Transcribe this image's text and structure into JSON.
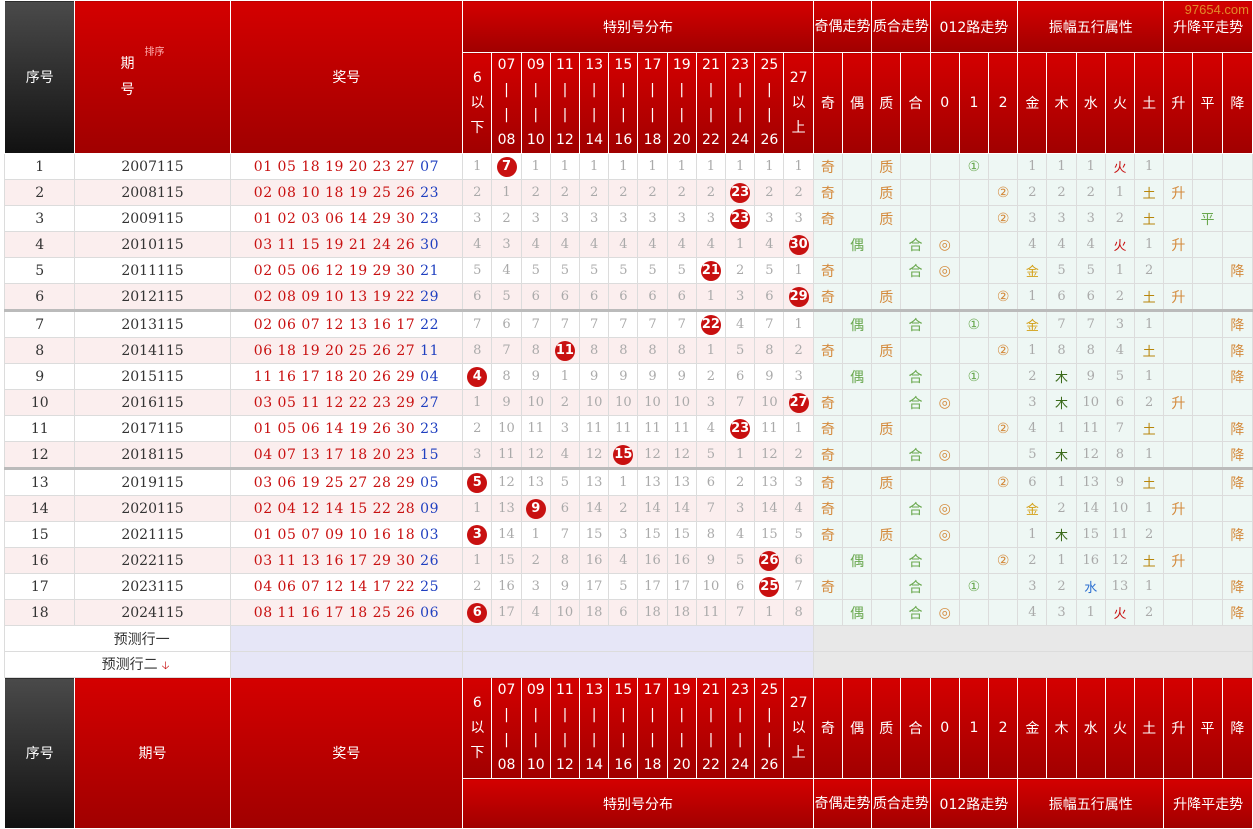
{
  "watermark": "97654.com",
  "headers": {
    "seq": "序号",
    "period_top": "期号",
    "period": "期号",
    "sort": "排序",
    "prize": "奖号",
    "special_dist": "特别号分布",
    "odd_even": "奇偶走势",
    "prime_comp": "质合走势",
    "road012": "012路走势",
    "amp_wuxing": "振幅五行属性",
    "trend": "升降平走势",
    "num_cols": [
      "6|以|下",
      "07|||08",
      "09|||10",
      "11|||12",
      "13|||14",
      "15|||16",
      "17|||18",
      "19|||20",
      "21|||22",
      "23|||24",
      "25|||26",
      "27|以|上"
    ],
    "oe_cols": [
      "奇",
      "偶"
    ],
    "pc_cols": [
      "质",
      "合"
    ],
    "r_cols": [
      "0",
      "1",
      "2"
    ],
    "wx_cols": [
      "金",
      "木",
      "水",
      "火",
      "土"
    ],
    "tr_cols": [
      "升",
      "平",
      "降"
    ]
  },
  "prediction_rows": [
    "预测行一",
    "预测行二"
  ],
  "rows": [
    {
      "seq": "1",
      "period": "2007115",
      "prize": "01 05 18 19 20 23 27",
      "special": "07",
      "hit": 1,
      "miss": [
        "1",
        "7",
        "1",
        "1",
        "1",
        "1",
        "1",
        "1",
        "1",
        "1",
        "1",
        "1"
      ],
      "oe": [
        "奇",
        ""
      ],
      "pc": [
        "质",
        ""
      ],
      "r": [
        "",
        "①",
        ""
      ],
      "wx": [
        "1",
        "1",
        "1",
        "火",
        "1"
      ],
      "tr": [
        "",
        "",
        ""
      ]
    },
    {
      "seq": "2",
      "period": "2008115",
      "prize": "02 08 10 18 19 25 26",
      "special": "23",
      "hit": 9,
      "miss": [
        "2",
        "1",
        "2",
        "2",
        "2",
        "2",
        "2",
        "2",
        "2",
        "23",
        "2",
        "2"
      ],
      "oe": [
        "奇",
        ""
      ],
      "pc": [
        "质",
        ""
      ],
      "r": [
        "",
        "",
        "②"
      ],
      "wx": [
        "2",
        "2",
        "2",
        "1",
        "土"
      ],
      "tr": [
        "升",
        "",
        ""
      ]
    },
    {
      "seq": "3",
      "period": "2009115",
      "prize": "01 02 03 06 14 29 30",
      "special": "23",
      "hit": 9,
      "miss": [
        "3",
        "2",
        "3",
        "3",
        "3",
        "3",
        "3",
        "3",
        "3",
        "23",
        "3",
        "3"
      ],
      "oe": [
        "奇",
        ""
      ],
      "pc": [
        "质",
        ""
      ],
      "r": [
        "",
        "",
        "②"
      ],
      "wx": [
        "3",
        "3",
        "3",
        "2",
        "土"
      ],
      "tr": [
        "",
        "平",
        ""
      ]
    },
    {
      "seq": "4",
      "period": "2010115",
      "prize": "03 11 15 19 21 24 26",
      "special": "30",
      "hit": 11,
      "miss": [
        "4",
        "3",
        "4",
        "4",
        "4",
        "4",
        "4",
        "4",
        "4",
        "1",
        "4",
        "30"
      ],
      "oe": [
        "",
        "偶"
      ],
      "pc": [
        "",
        "合"
      ],
      "r": [
        "◎",
        "",
        ""
      ],
      "wx": [
        "4",
        "4",
        "4",
        "火",
        "1"
      ],
      "tr": [
        "升",
        "",
        ""
      ]
    },
    {
      "seq": "5",
      "period": "2011115",
      "prize": "02 05 06 12 19 29 30",
      "special": "21",
      "hit": 8,
      "miss": [
        "5",
        "4",
        "5",
        "5",
        "5",
        "5",
        "5",
        "5",
        "21",
        "2",
        "5",
        "1"
      ],
      "oe": [
        "奇",
        ""
      ],
      "pc": [
        "",
        "合"
      ],
      "r": [
        "◎",
        "",
        ""
      ],
      "wx": [
        "金",
        "5",
        "5",
        "1",
        "2"
      ],
      "tr": [
        "",
        "",
        "降"
      ]
    },
    {
      "seq": "6",
      "period": "2012115",
      "prize": "02 08 09 10 13 19 22",
      "special": "29",
      "hit": 11,
      "miss": [
        "6",
        "5",
        "6",
        "6",
        "6",
        "6",
        "6",
        "6",
        "1",
        "3",
        "6",
        "29"
      ],
      "oe": [
        "奇",
        ""
      ],
      "pc": [
        "质",
        ""
      ],
      "r": [
        "",
        "",
        "②"
      ],
      "wx": [
        "1",
        "6",
        "6",
        "2",
        "土"
      ],
      "tr": [
        "升",
        "",
        ""
      ]
    },
    {
      "seq": "7",
      "period": "2013115",
      "prize": "02 06 07 12 13 16 17",
      "special": "22",
      "hit": 8,
      "miss": [
        "7",
        "6",
        "7",
        "7",
        "7",
        "7",
        "7",
        "7",
        "22",
        "4",
        "7",
        "1"
      ],
      "oe": [
        "",
        "偶"
      ],
      "pc": [
        "",
        "合"
      ],
      "r": [
        "",
        "①",
        ""
      ],
      "wx": [
        "金",
        "7",
        "7",
        "3",
        "1"
      ],
      "tr": [
        "",
        "",
        "降"
      ]
    },
    {
      "seq": "8",
      "period": "2014115",
      "prize": "06 18 19 20 25 26 27",
      "special": "11",
      "hit": 3,
      "miss": [
        "8",
        "7",
        "8",
        "11",
        "8",
        "8",
        "8",
        "8",
        "1",
        "5",
        "8",
        "2"
      ],
      "oe": [
        "奇",
        ""
      ],
      "pc": [
        "质",
        ""
      ],
      "r": [
        "",
        "",
        "②"
      ],
      "wx": [
        "1",
        "8",
        "8",
        "4",
        "土"
      ],
      "tr": [
        "",
        "",
        "降"
      ]
    },
    {
      "seq": "9",
      "period": "2015115",
      "prize": "11 16 17 18 20 26 29",
      "special": "04",
      "hit": 0,
      "miss": [
        "4",
        "8",
        "9",
        "1",
        "9",
        "9",
        "9",
        "9",
        "2",
        "6",
        "9",
        "3"
      ],
      "oe": [
        "",
        "偶"
      ],
      "pc": [
        "",
        "合"
      ],
      "r": [
        "",
        "①",
        ""
      ],
      "wx": [
        "2",
        "木",
        "9",
        "5",
        "1"
      ],
      "tr": [
        "",
        "",
        "降"
      ]
    },
    {
      "seq": "10",
      "period": "2016115",
      "prize": "03 05 11 12 22 23 29",
      "special": "27",
      "hit": 11,
      "miss": [
        "1",
        "9",
        "10",
        "2",
        "10",
        "10",
        "10",
        "10",
        "3",
        "7",
        "10",
        "27"
      ],
      "oe": [
        "奇",
        ""
      ],
      "pc": [
        "",
        "合"
      ],
      "r": [
        "◎",
        "",
        ""
      ],
      "wx": [
        "3",
        "木",
        "10",
        "6",
        "2"
      ],
      "tr": [
        "升",
        "",
        ""
      ]
    },
    {
      "seq": "11",
      "period": "2017115",
      "prize": "01 05 06 14 19 26 30",
      "special": "23",
      "hit": 9,
      "miss": [
        "2",
        "10",
        "11",
        "3",
        "11",
        "11",
        "11",
        "11",
        "4",
        "23",
        "11",
        "1"
      ],
      "oe": [
        "奇",
        ""
      ],
      "pc": [
        "质",
        ""
      ],
      "r": [
        "",
        "",
        "②"
      ],
      "wx": [
        "4",
        "1",
        "11",
        "7",
        "土"
      ],
      "tr": [
        "",
        "",
        "降"
      ]
    },
    {
      "seq": "12",
      "period": "2018115",
      "prize": "04 07 13 17 18 20 23",
      "special": "15",
      "hit": 5,
      "miss": [
        "3",
        "11",
        "12",
        "4",
        "12",
        "15",
        "12",
        "12",
        "5",
        "1",
        "12",
        "2"
      ],
      "oe": [
        "奇",
        ""
      ],
      "pc": [
        "",
        "合"
      ],
      "r": [
        "◎",
        "",
        ""
      ],
      "wx": [
        "5",
        "木",
        "12",
        "8",
        "1"
      ],
      "tr": [
        "",
        "",
        "降"
      ]
    },
    {
      "seq": "13",
      "period": "2019115",
      "prize": "03 06 19 25 27 28 29",
      "special": "05",
      "hit": 0,
      "miss": [
        "5",
        "12",
        "13",
        "5",
        "13",
        "1",
        "13",
        "13",
        "6",
        "2",
        "13",
        "3"
      ],
      "oe": [
        "奇",
        ""
      ],
      "pc": [
        "质",
        ""
      ],
      "r": [
        "",
        "",
        "②"
      ],
      "wx": [
        "6",
        "1",
        "13",
        "9",
        "土"
      ],
      "tr": [
        "",
        "",
        "降"
      ]
    },
    {
      "seq": "14",
      "period": "2020115",
      "prize": "02 04 12 14 15 22 28",
      "special": "09",
      "hit": 2,
      "miss": [
        "1",
        "13",
        "9",
        "6",
        "14",
        "2",
        "14",
        "14",
        "7",
        "3",
        "14",
        "4"
      ],
      "oe": [
        "奇",
        ""
      ],
      "pc": [
        "",
        "合"
      ],
      "r": [
        "◎",
        "",
        ""
      ],
      "wx": [
        "金",
        "2",
        "14",
        "10",
        "1"
      ],
      "tr": [
        "升",
        "",
        ""
      ]
    },
    {
      "seq": "15",
      "period": "2021115",
      "prize": "01 05 07 09 10 16 18",
      "special": "03",
      "hit": 0,
      "miss": [
        "3",
        "14",
        "1",
        "7",
        "15",
        "3",
        "15",
        "15",
        "8",
        "4",
        "15",
        "5"
      ],
      "oe": [
        "奇",
        ""
      ],
      "pc": [
        "质",
        ""
      ],
      "r": [
        "◎",
        "",
        ""
      ],
      "wx": [
        "1",
        "木",
        "15",
        "11",
        "2"
      ],
      "tr": [
        "",
        "",
        "降"
      ]
    },
    {
      "seq": "16",
      "period": "2022115",
      "prize": "03 11 13 16 17 29 30",
      "special": "26",
      "hit": 10,
      "miss": [
        "1",
        "15",
        "2",
        "8",
        "16",
        "4",
        "16",
        "16",
        "9",
        "5",
        "26",
        "6"
      ],
      "oe": [
        "",
        "偶"
      ],
      "pc": [
        "",
        "合"
      ],
      "r": [
        "",
        "",
        "②"
      ],
      "wx": [
        "2",
        "1",
        "16",
        "12",
        "土"
      ],
      "tr": [
        "升",
        "",
        ""
      ]
    },
    {
      "seq": "17",
      "period": "2023115",
      "prize": "04 06 07 12 14 17 22",
      "special": "25",
      "hit": 10,
      "miss": [
        "2",
        "16",
        "3",
        "9",
        "17",
        "5",
        "17",
        "17",
        "10",
        "6",
        "25",
        "7"
      ],
      "oe": [
        "奇",
        ""
      ],
      "pc": [
        "",
        "合"
      ],
      "r": [
        "",
        "①",
        ""
      ],
      "wx": [
        "3",
        "2",
        "水",
        "13",
        "1"
      ],
      "tr": [
        "",
        "",
        "降"
      ]
    },
    {
      "seq": "18",
      "period": "2024115",
      "prize": "08 11 16 17 18 25 26",
      "special": "06",
      "hit": 0,
      "miss": [
        "6",
        "17",
        "4",
        "10",
        "18",
        "6",
        "18",
        "18",
        "11",
        "7",
        "1",
        "8"
      ],
      "oe": [
        "",
        "偶"
      ],
      "pc": [
        "",
        "合"
      ],
      "r": [
        "◎",
        "",
        ""
      ],
      "wx": [
        "4",
        "3",
        "1",
        "火",
        "2"
      ],
      "tr": [
        "",
        "",
        "降"
      ]
    }
  ]
}
